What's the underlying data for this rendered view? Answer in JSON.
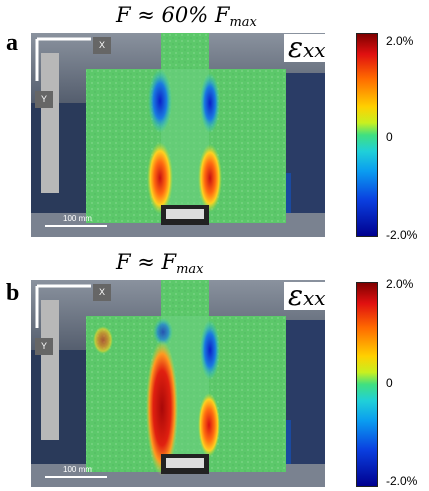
{
  "panels": [
    {
      "label": "a",
      "title_main": "F ≈ 60% F",
      "title_sub": "max",
      "strain_symbol": "ε",
      "strain_sub": "xx",
      "colorbar_ticks": [
        "2.0%",
        "0",
        "-2.0%"
      ],
      "axis_x": "X",
      "axis_y": "Y",
      "scale_label": "100 mm"
    },
    {
      "label": "b",
      "title_main": "F ≈ F",
      "title_sub": "max",
      "strain_symbol": "ε",
      "strain_sub": "xx",
      "colorbar_ticks": [
        "2.0%",
        "0",
        "-2.0%"
      ],
      "axis_x": "X",
      "axis_y": "Y",
      "scale_label": "100 mm"
    }
  ],
  "colors": {
    "strain_max": "#7f0000",
    "strain_zero": "#40e080",
    "strain_min": "#00008f",
    "specimen_base": "#5cc86a"
  }
}
